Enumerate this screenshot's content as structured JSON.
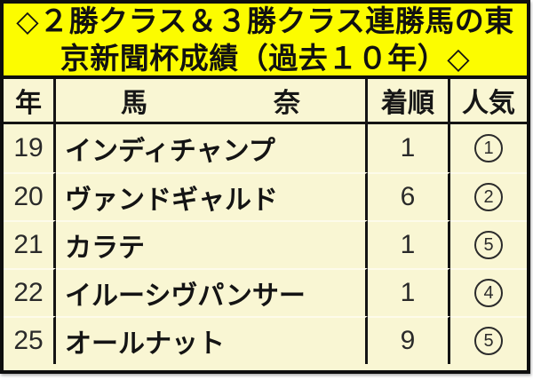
{
  "title": {
    "line1": "◇２勝クラス＆３勝クラス連勝馬の東",
    "line2": "京新聞杯成績（過去１０年）◇"
  },
  "table": {
    "headers": {
      "year": "年",
      "name_left": "馬",
      "name_right": "奈",
      "finish": "着順",
      "popularity": "人気"
    },
    "rows": [
      {
        "year": "19",
        "name": "インディチャンプ",
        "finish": "1",
        "popularity": "1",
        "popularity_circled": "①"
      },
      {
        "year": "20",
        "name": "ヴァンドギャルド",
        "finish": "6",
        "popularity": "2",
        "popularity_circled": "②"
      },
      {
        "year": "21",
        "name": "カラテ",
        "finish": "1",
        "popularity": "5",
        "popularity_circled": "⑤"
      },
      {
        "year": "22",
        "name": "イルーシヴパンサー",
        "finish": "1",
        "popularity": "4",
        "popularity_circled": "④"
      },
      {
        "year": "25",
        "name": "オールナット",
        "finish": "9",
        "popularity": "5",
        "popularity_circled": "⑤"
      }
    ]
  },
  "colors": {
    "banner_bg": "#fcfc00",
    "table_bg": "#f9f6d3",
    "border": "#0e0e0e",
    "text": "#1a1a1a"
  },
  "chart_data": {
    "type": "table",
    "title": "◇２勝クラス＆３勝クラス連勝馬の東京新聞杯成績（過去１０年）◇",
    "columns": [
      "年",
      "馬奈",
      "着順",
      "人気"
    ],
    "rows": [
      [
        "19",
        "インディチャンプ",
        "1",
        "①"
      ],
      [
        "20",
        "ヴァンドギャルド",
        "6",
        "②"
      ],
      [
        "21",
        "カラテ",
        "1",
        "⑤"
      ],
      [
        "22",
        "イルーシヴパンサー",
        "1",
        "④"
      ],
      [
        "25",
        "オールナット",
        "9",
        "⑤"
      ]
    ],
    "layout_hints": {
      "header_band": "yellow",
      "body_band": "cream",
      "grid": "black outer and column lines, faint light row separators"
    }
  }
}
